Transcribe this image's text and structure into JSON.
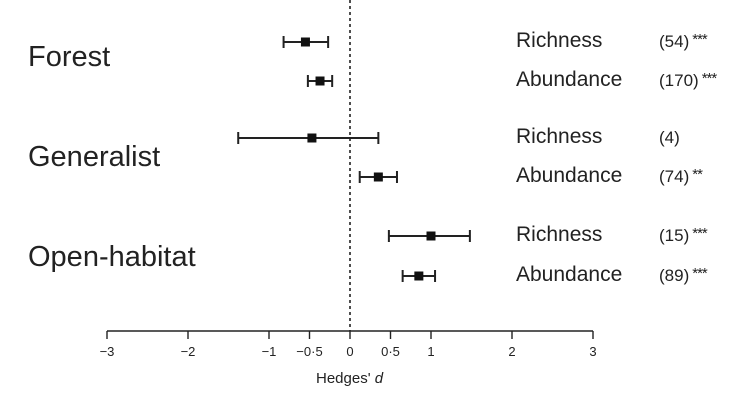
{
  "chart_data": {
    "type": "forest",
    "xlabel": "Hedges' d",
    "xlim": [
      -3,
      3
    ],
    "xticks": [
      {
        "value": -3,
        "label": "−3"
      },
      {
        "value": -2,
        "label": "−2"
      },
      {
        "value": -1,
        "label": "−1"
      },
      {
        "value": -0.5,
        "label": "−0·5"
      },
      {
        "value": 0,
        "label": "0"
      },
      {
        "value": 0.5,
        "label": "0·5"
      },
      {
        "value": 1,
        "label": "1"
      },
      {
        "value": 2,
        "label": "2"
      },
      {
        "value": 3,
        "label": "3"
      }
    ],
    "reference_line": 0,
    "groups": [
      {
        "name": "Forest",
        "rows": [
          {
            "metric": "Richness",
            "n": "(54)",
            "sig": "***",
            "estimate": -0.55,
            "lower": -0.82,
            "upper": -0.27
          },
          {
            "metric": "Abundance",
            "n": "(170)",
            "sig": "***",
            "estimate": -0.37,
            "lower": -0.52,
            "upper": -0.22
          }
        ]
      },
      {
        "name": "Generalist",
        "rows": [
          {
            "metric": "Richness",
            "n": "(4)",
            "sig": "",
            "estimate": -0.47,
            "lower": -1.38,
            "upper": 0.35
          },
          {
            "metric": "Abundance",
            "n": "(74)",
            "sig": "**",
            "estimate": 0.35,
            "lower": 0.12,
            "upper": 0.58
          }
        ]
      },
      {
        "name": "Open-habitat",
        "rows": [
          {
            "metric": "Richness",
            "n": "(15)",
            "sig": "***",
            "estimate": 1.0,
            "lower": 0.48,
            "upper": 1.48
          },
          {
            "metric": "Abundance",
            "n": "(89)",
            "sig": "***",
            "estimate": 0.85,
            "lower": 0.65,
            "upper": 1.05
          }
        ]
      }
    ]
  }
}
